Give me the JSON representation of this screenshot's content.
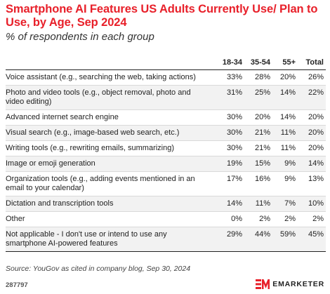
{
  "title": "Smartphone AI Features US Adults Currently Use/ Plan to Use, by Age, Sep 2024",
  "subtitle": "% of respondents in each group",
  "chart_data": {
    "type": "table",
    "columns": [
      "18-34",
      "35-54",
      "55+",
      "Total"
    ],
    "rows": [
      {
        "label": "Voice assistant (e.g., searching the web, taking actions)",
        "values": [
          "33%",
          "28%",
          "20%",
          "26%"
        ]
      },
      {
        "label": "Photo and video tools (e.g., object removal, photo and video editing)",
        "values": [
          "31%",
          "25%",
          "14%",
          "22%"
        ]
      },
      {
        "label": "Advanced internet search engine",
        "values": [
          "30%",
          "20%",
          "14%",
          "20%"
        ]
      },
      {
        "label": "Visual search (e.g., image-based web search, etc.)",
        "values": [
          "30%",
          "21%",
          "11%",
          "20%"
        ]
      },
      {
        "label": "Writing tools (e.g., rewriting emails, summarizing)",
        "values": [
          "30%",
          "21%",
          "11%",
          "20%"
        ]
      },
      {
        "label": "Image or emoji generation",
        "values": [
          "19%",
          "15%",
          "9%",
          "14%"
        ]
      },
      {
        "label": "Organization tools (e.g., adding events mentioned in an email to your calendar)",
        "values": [
          "17%",
          "16%",
          "9%",
          "13%"
        ]
      },
      {
        "label": "Dictation and transcription tools",
        "values": [
          "14%",
          "11%",
          "7%",
          "10%"
        ]
      },
      {
        "label": "Other",
        "values": [
          "0%",
          "2%",
          "2%",
          "2%"
        ]
      },
      {
        "label": "Not applicable - I don't use or intend to use any smartphone AI-powered features",
        "values": [
          "29%",
          "44%",
          "59%",
          "45%"
        ]
      }
    ]
  },
  "source": "Source: YouGov as cited in company blog, Sep 30, 2024",
  "chart_id": "287797",
  "brand": {
    "name": "EMARKETER",
    "logo_icon": "em-logo-icon",
    "color": "#e8202a"
  }
}
